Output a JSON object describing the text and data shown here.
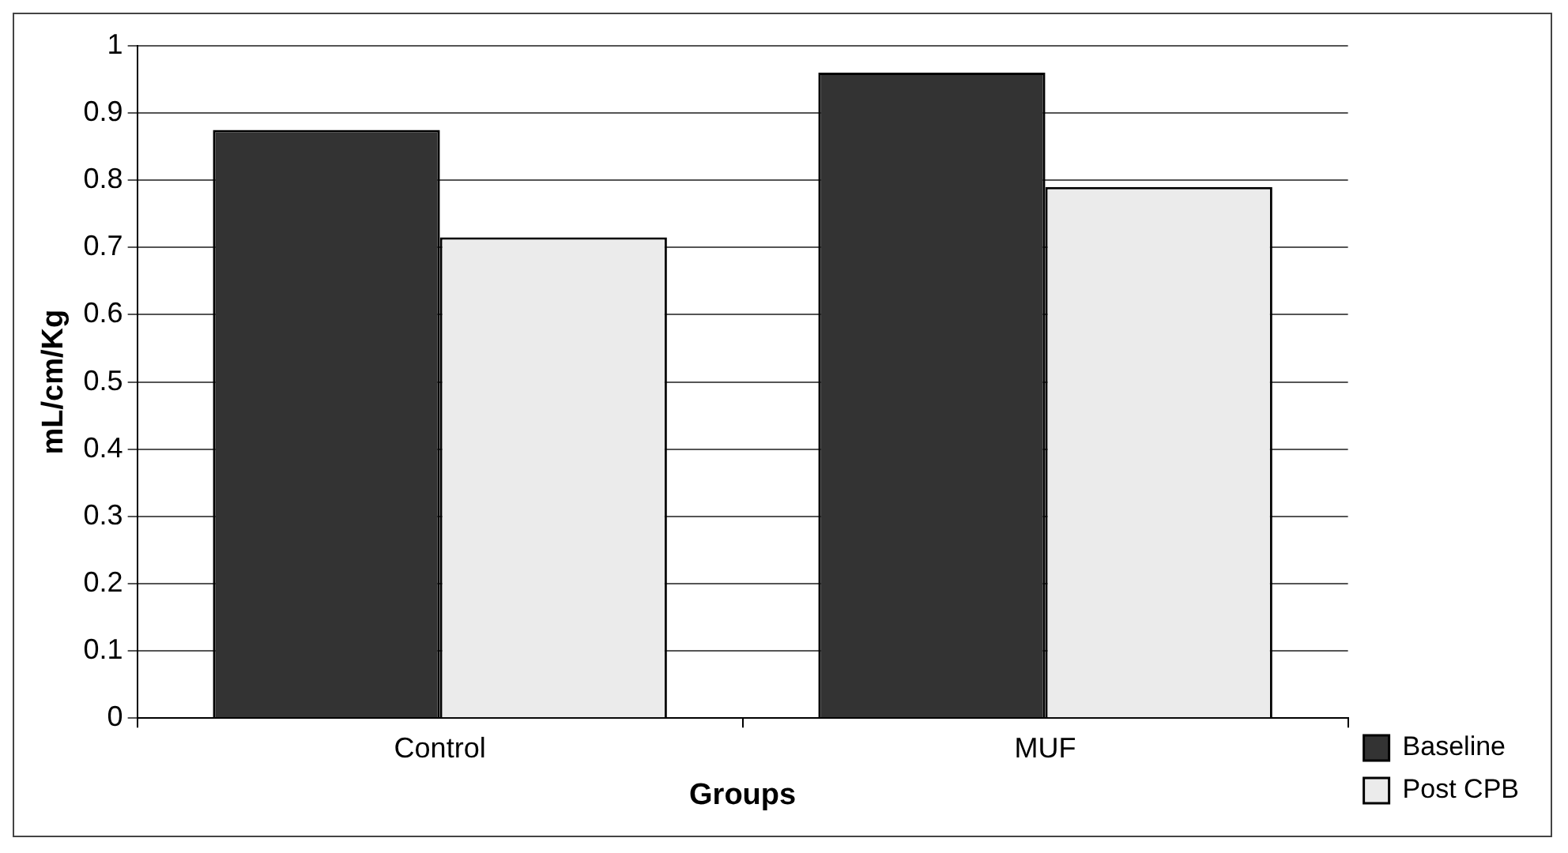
{
  "chart_data": {
    "type": "bar",
    "xlabel": "Groups",
    "ylabel": "mL/cm/Kg",
    "categories": [
      "Control",
      "MUF"
    ],
    "series": [
      {
        "name": "Baseline",
        "color": "#333333",
        "values": [
          0.875,
          0.96
        ]
      },
      {
        "name": "Post CPB",
        "color": "#ebebeb",
        "values": [
          0.715,
          0.79
        ]
      }
    ],
    "ylim": [
      0,
      1
    ],
    "yticks": [
      0,
      0.1,
      0.2,
      0.3,
      0.4,
      0.5,
      0.6,
      0.7,
      0.8,
      0.9,
      1
    ],
    "grid": "y",
    "legend": "bottom right"
  }
}
